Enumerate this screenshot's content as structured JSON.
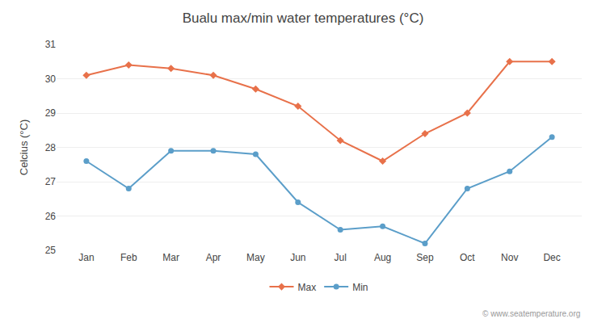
{
  "chart_data": {
    "type": "line",
    "title": "Bualu max/min water temperatures (°C)",
    "ylabel": "Celcius (°C)",
    "categories": [
      "Jan",
      "Feb",
      "Mar",
      "Apr",
      "May",
      "Jun",
      "Jul",
      "Aug",
      "Sep",
      "Oct",
      "Nov",
      "Dec"
    ],
    "series": [
      {
        "name": "Max",
        "color": "#e8714a",
        "marker": "diamond",
        "values": [
          30.1,
          30.4,
          30.3,
          30.1,
          29.7,
          29.2,
          28.2,
          27.6,
          28.4,
          29.0,
          30.5,
          30.5
        ]
      },
      {
        "name": "Min",
        "color": "#5b9ec9",
        "marker": "circle",
        "values": [
          27.6,
          26.8,
          27.9,
          27.9,
          27.8,
          26.4,
          25.6,
          25.7,
          25.2,
          26.8,
          27.3,
          28.3
        ]
      }
    ],
    "ylim": [
      25,
      31
    ],
    "yticks": [
      25,
      26,
      27,
      28,
      29,
      30,
      31
    ],
    "grid": true,
    "legend": "bottom",
    "annotations": [
      "© www.seatemperature.org"
    ]
  }
}
